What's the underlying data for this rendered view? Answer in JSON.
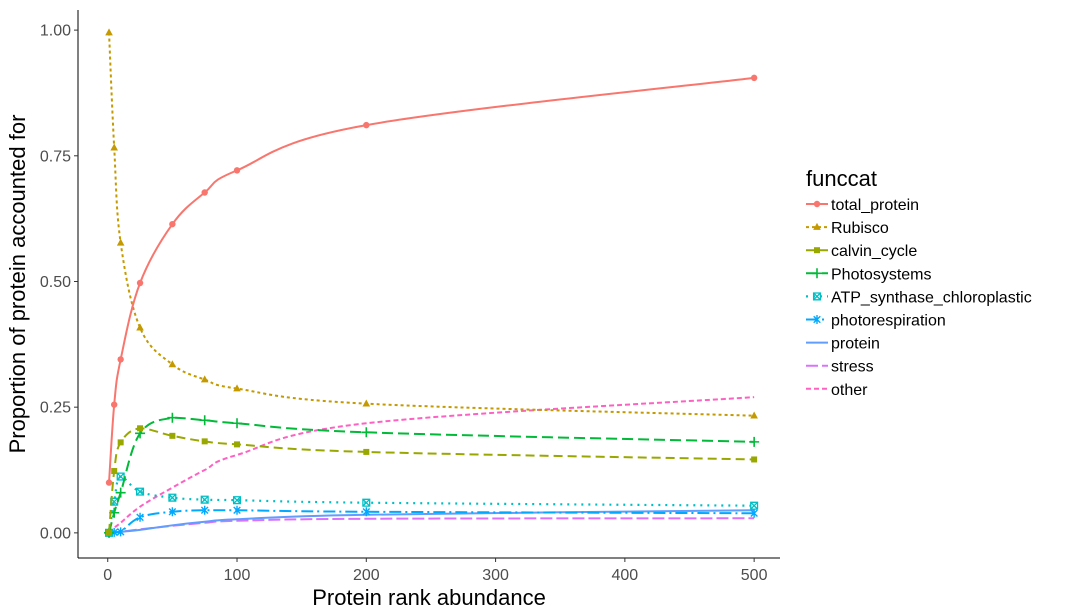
{
  "chart_data": {
    "type": "line",
    "xlabel": "Protein rank abundance",
    "ylabel": "Proportion of protein accounted for",
    "xlim": [
      -23,
      520
    ],
    "ylim": [
      -0.05,
      1.04
    ],
    "xticks": [
      0,
      100,
      200,
      300,
      400,
      500
    ],
    "yticks": [
      0.0,
      0.25,
      0.5,
      0.75,
      1.0
    ],
    "xtick_labels": [
      "0",
      "100",
      "200",
      "300",
      "400",
      "500"
    ],
    "ytick_labels": [
      "0.00",
      "0.25",
      "0.50",
      "0.75",
      "1.00"
    ],
    "grid": false,
    "legend_position": "right",
    "legend_title": "funccat",
    "x": [
      1,
      5,
      10,
      25,
      50,
      75,
      100,
      200,
      500
    ],
    "series": [
      {
        "name": "total_protein",
        "color": "#F8766D",
        "dash": "",
        "width": 2,
        "marker": "circle",
        "values": [
          0.1,
          0.255,
          0.345,
          0.497,
          0.614,
          0.677,
          0.721,
          0.811,
          0.905
        ]
      },
      {
        "name": "Rubisco",
        "color": "#C49A00",
        "dash": "3,3",
        "width": 2,
        "marker": "triangle",
        "values": [
          0.995,
          0.766,
          0.577,
          0.408,
          0.335,
          0.305,
          0.287,
          0.257,
          0.233
        ]
      },
      {
        "name": "calvin_cycle",
        "color": "#99A800",
        "dash": "9,5",
        "width": 2,
        "marker": "square",
        "values": [
          0.0,
          0.123,
          0.18,
          0.208,
          0.193,
          0.182,
          0.176,
          0.161,
          0.146
        ]
      },
      {
        "name": "Photosystems",
        "color": "#00BA38",
        "dash": "11,5",
        "width": 2,
        "marker": "plus",
        "values": [
          0.0,
          0.04,
          0.08,
          0.198,
          0.229,
          0.224,
          0.218,
          0.2,
          0.181
        ]
      },
      {
        "name": "ATP_synthase_chloroplastic",
        "color": "#00BFC4",
        "dash": "2,5",
        "width": 2.2,
        "marker": "squarex",
        "values": [
          0.0,
          0.062,
          0.112,
          0.082,
          0.07,
          0.066,
          0.065,
          0.06,
          0.054
        ]
      },
      {
        "name": "photorespiration",
        "color": "#00A9FF",
        "dash": "12,4,2,4",
        "width": 2,
        "marker": "asterisk",
        "values": [
          0.0,
          0.001,
          0.002,
          0.031,
          0.042,
          0.045,
          0.045,
          0.042,
          0.039
        ]
      },
      {
        "name": "protein",
        "color": "#619CFF",
        "dash": "",
        "width": 2,
        "marker": "none",
        "values": [
          0.0,
          0.001,
          0.002,
          0.006,
          0.015,
          0.022,
          0.027,
          0.036,
          0.045
        ]
      },
      {
        "name": "stress",
        "color": "#DB72FB",
        "dash": "12,4",
        "width": 2,
        "marker": "none",
        "values": [
          0.0,
          0.001,
          0.002,
          0.007,
          0.014,
          0.02,
          0.024,
          0.028,
          0.029
        ]
      },
      {
        "name": "other",
        "color": "#FF61C3",
        "dash": "5,3",
        "width": 2,
        "marker": "none",
        "values": [
          0.0,
          0.01,
          0.02,
          0.052,
          0.09,
          0.125,
          0.155,
          0.218,
          0.27
        ]
      }
    ]
  }
}
